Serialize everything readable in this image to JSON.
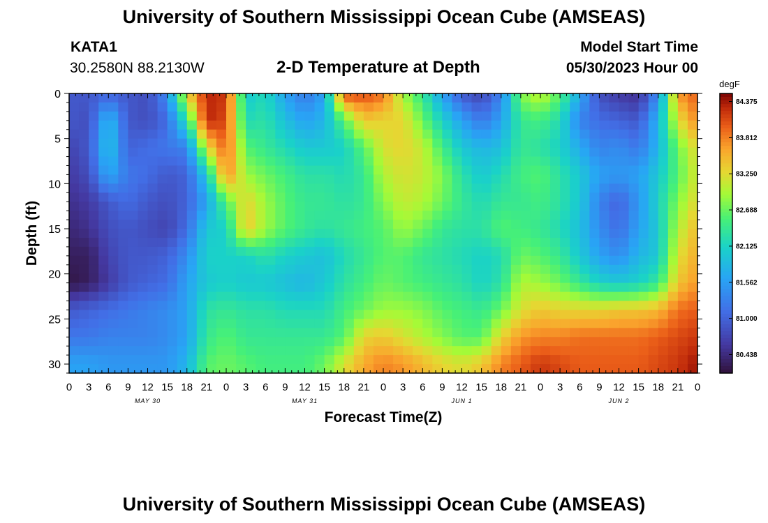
{
  "header": {
    "title": "University of Southern Mississippi Ocean Cube (AMSEAS)",
    "station": "KATA1",
    "coordinates": "30.2580N  88.2130W",
    "subtitle": "2-D Temperature at Depth",
    "model_start_label": "Model Start Time",
    "model_start_value": "05/30/2023 Hour 00"
  },
  "footer": {
    "title": "University of Southern Mississippi Ocean Cube (AMSEAS)"
  },
  "chart_data": {
    "type": "heatmap",
    "title": "2-D Temperature at Depth",
    "xlabel": "Forecast Time(Z)",
    "ylabel": "Depth (ft)",
    "x_unit": "hours since model start",
    "xlim": [
      0,
      96
    ],
    "ylim": [
      0,
      31
    ],
    "x_tick_labels": [
      "0",
      "3",
      "6",
      "9",
      "12",
      "15",
      "18",
      "21",
      "0",
      "3",
      "6",
      "9",
      "12",
      "15",
      "18",
      "21",
      "0",
      "3",
      "6",
      "9",
      "12",
      "15",
      "18",
      "21",
      "0",
      "3",
      "6",
      "9",
      "12",
      "15",
      "18",
      "21",
      "0"
    ],
    "date_labels": [
      {
        "hour": 12,
        "text": "MAY 30"
      },
      {
        "hour": 36,
        "text": "MAY 31"
      },
      {
        "hour": 60,
        "text": "JUN 1"
      },
      {
        "hour": 84,
        "text": "JUN 2"
      }
    ],
    "y_ticks": [
      0,
      5,
      10,
      15,
      20,
      25,
      30
    ],
    "colorbar": {
      "unit": "degF",
      "min": 80.15,
      "max": 84.5,
      "tick_labels": [
        "84.375",
        "83.812",
        "83.250",
        "82.688",
        "82.125",
        "81.562",
        "81.000",
        "80.438"
      ]
    },
    "depth_levels": [
      0,
      3,
      6,
      9,
      12,
      15,
      18,
      21,
      24,
      27,
      30
    ],
    "time_steps": [
      0,
      3,
      6,
      9,
      12,
      15,
      18,
      21,
      24,
      27,
      30,
      33,
      36,
      39,
      42,
      45,
      48,
      51,
      54,
      57,
      60,
      63,
      66,
      69,
      72,
      75,
      78,
      81,
      84,
      87,
      90,
      93,
      96
    ],
    "values": [
      [
        80.9,
        80.9,
        81.0,
        80.9,
        80.8,
        81.4,
        83.3,
        84.3,
        84.2,
        82.0,
        82.2,
        81.6,
        81.2,
        81.6,
        84.1,
        84.1,
        83.9,
        82.9,
        82.4,
        81.6,
        80.9,
        80.7,
        81.3,
        82.8,
        83.1,
        82.6,
        81.7,
        80.8,
        80.6,
        80.5,
        81.4,
        83.7,
        84.0
      ],
      [
        80.9,
        80.8,
        81.9,
        80.9,
        80.8,
        81.1,
        82.3,
        84.3,
        84.1,
        82.2,
        82.3,
        81.9,
        81.6,
        81.8,
        82.6,
        83.4,
        83.3,
        83.3,
        82.7,
        82.1,
        81.6,
        81.2,
        81.6,
        82.4,
        82.5,
        82.2,
        81.3,
        81.1,
        81.0,
        80.9,
        81.8,
        83.2,
        83.8
      ],
      [
        80.7,
        80.9,
        82.0,
        81.0,
        81.1,
        81.2,
        81.3,
        83.2,
        84.0,
        82.6,
        82.4,
        82.2,
        82.0,
        82.0,
        82.1,
        82.6,
        83.2,
        83.3,
        83.1,
        82.5,
        82.0,
        81.8,
        81.9,
        82.4,
        82.3,
        82.1,
        81.7,
        81.3,
        81.4,
        81.2,
        81.8,
        82.7,
        83.3
      ],
      [
        80.6,
        80.8,
        81.7,
        81.2,
        81.1,
        80.9,
        81.0,
        82.0,
        83.8,
        82.9,
        82.7,
        82.5,
        82.3,
        82.3,
        82.2,
        82.4,
        83.0,
        83.2,
        83.1,
        82.8,
        82.3,
        82.0,
        82.2,
        82.5,
        82.6,
        82.3,
        82.0,
        81.6,
        81.5,
        81.6,
        82.0,
        82.6,
        83.2
      ],
      [
        80.5,
        80.6,
        80.9,
        81.1,
        80.9,
        80.8,
        81.0,
        81.6,
        82.6,
        83.3,
        82.9,
        82.6,
        82.4,
        82.4,
        82.3,
        82.4,
        82.8,
        83.1,
        83.0,
        82.7,
        82.4,
        82.2,
        82.4,
        82.4,
        82.5,
        82.3,
        82.0,
        81.3,
        81.0,
        81.5,
        82.1,
        82.8,
        83.3
      ],
      [
        80.4,
        80.5,
        80.8,
        80.9,
        80.8,
        80.7,
        81.1,
        82.0,
        82.1,
        83.4,
        82.9,
        82.6,
        82.4,
        82.3,
        82.4,
        82.5,
        82.6,
        82.9,
        82.7,
        82.4,
        82.3,
        82.3,
        82.6,
        82.5,
        82.4,
        82.2,
        81.9,
        81.4,
        81.1,
        81.6,
        82.0,
        83.0,
        83.5
      ],
      [
        80.3,
        80.3,
        80.7,
        80.9,
        80.9,
        81.0,
        81.4,
        82.1,
        82.1,
        82.1,
        82.3,
        82.1,
        82.0,
        81.9,
        82.2,
        82.4,
        82.6,
        82.6,
        82.4,
        82.3,
        82.2,
        82.1,
        82.2,
        82.7,
        82.6,
        82.4,
        82.0,
        81.6,
        81.4,
        81.8,
        82.0,
        83.2,
        83.6
      ],
      [
        80.2,
        80.3,
        80.6,
        80.9,
        81.0,
        81.1,
        81.6,
        82.0,
        82.1,
        82.0,
        82.0,
        81.9,
        81.8,
        82.0,
        82.3,
        82.5,
        82.7,
        82.6,
        82.5,
        82.4,
        82.3,
        82.1,
        82.3,
        83.0,
        82.9,
        82.7,
        82.4,
        82.1,
        82.0,
        82.1,
        82.4,
        83.4,
        83.7
      ],
      [
        80.9,
        81.0,
        81.1,
        81.2,
        81.3,
        81.4,
        81.6,
        82.3,
        82.4,
        82.3,
        82.3,
        82.2,
        82.2,
        82.2,
        82.5,
        82.7,
        82.9,
        82.9,
        82.8,
        82.6,
        82.5,
        82.4,
        82.7,
        83.2,
        83.4,
        83.3,
        83.3,
        83.3,
        83.4,
        83.4,
        83.5,
        83.9,
        84.0
      ],
      [
        81.2,
        81.2,
        81.3,
        81.3,
        81.3,
        81.4,
        81.6,
        82.4,
        82.6,
        82.4,
        82.4,
        82.4,
        82.4,
        82.4,
        82.6,
        83.3,
        83.4,
        83.2,
        83.0,
        82.8,
        82.6,
        82.6,
        83.3,
        83.7,
        83.8,
        83.8,
        83.9,
        83.9,
        83.9,
        83.9,
        84.0,
        84.1,
        84.2
      ],
      [
        81.6,
        81.6,
        81.5,
        81.5,
        81.5,
        81.5,
        81.8,
        82.6,
        82.7,
        82.6,
        82.5,
        82.5,
        82.5,
        82.7,
        83.2,
        83.6,
        83.8,
        83.7,
        83.5,
        83.3,
        83.2,
        83.4,
        83.8,
        84.0,
        84.2,
        84.1,
        84.0,
        84.0,
        84.0,
        84.0,
        84.1,
        84.2,
        84.4
      ]
    ]
  }
}
